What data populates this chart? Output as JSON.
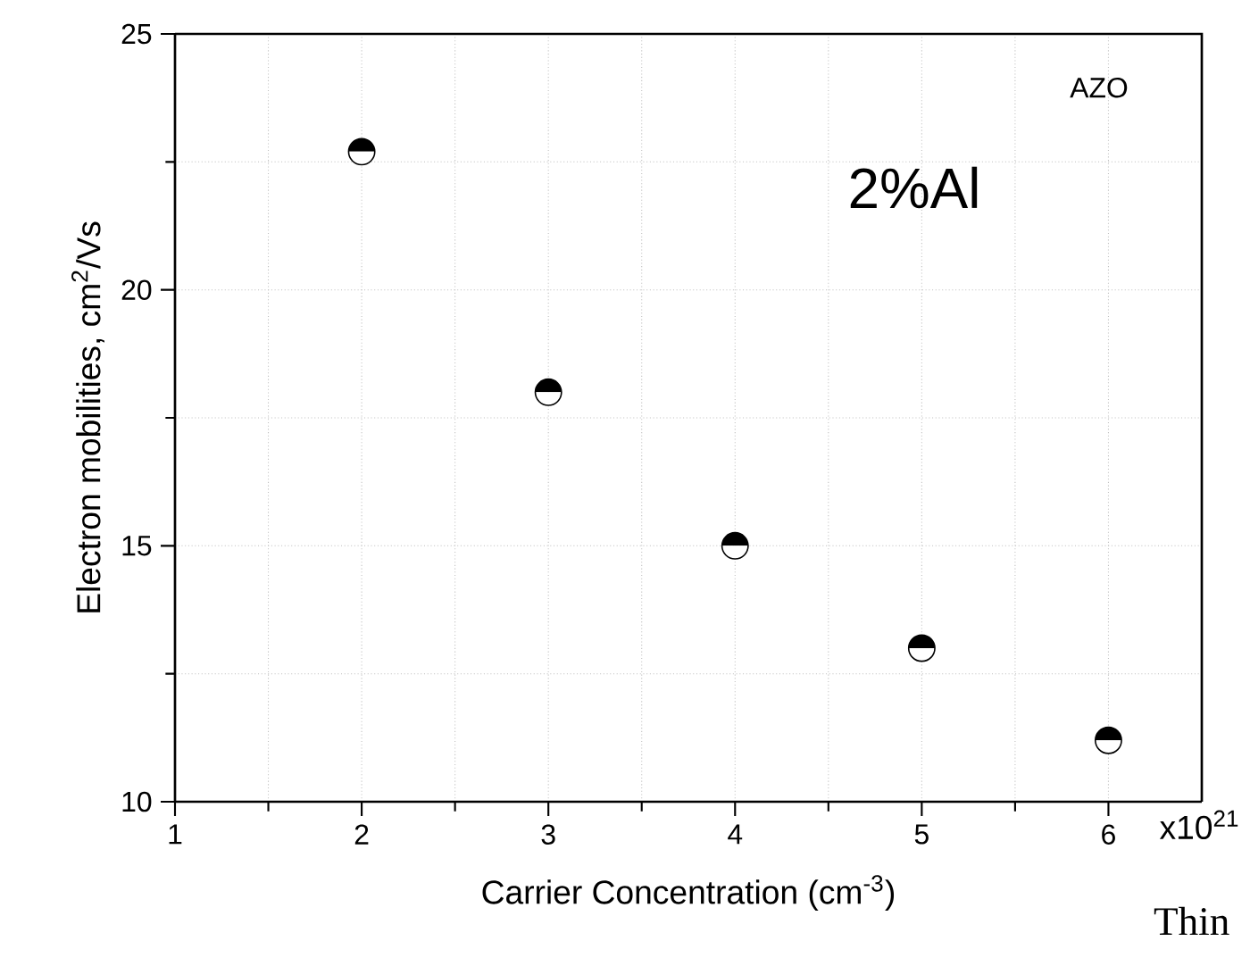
{
  "chart_data": {
    "type": "scatter",
    "xlabel": "Carrier Concentration (cm$^{-3}$)",
    "ylabel": "Electron mobilities, cm$^{2}$/Vs",
    "x": [
      2,
      3,
      4,
      5,
      6
    ],
    "values": [
      22.7,
      18.0,
      15.0,
      13.0,
      11.2
    ],
    "color": "#000000",
    "marker": "circle",
    "xlim": [
      1,
      6.5
    ],
    "ylim": [
      10,
      25
    ],
    "xticks": [
      1,
      {
        "value": 1.5,
        "label": null
      },
      2,
      {
        "value": 2.5,
        "label": null
      },
      3,
      {
        "value": 3.5,
        "label": null
      },
      4,
      {
        "value": 4.5,
        "label": null
      },
      5,
      {
        "value": 5.5,
        "label": null
      },
      6
    ],
    "yticks": [
      10,
      {
        "value": 12.5,
        "label": null
      },
      15,
      {
        "value": 17.5,
        "label": null
      },
      20,
      {
        "value": 22.5,
        "label": null
      },
      25
    ],
    "grid": true,
    "annotations": [
      "AZO",
      "2%Al",
      "x10$^{21}$",
      "Thin"
    ]
  }
}
